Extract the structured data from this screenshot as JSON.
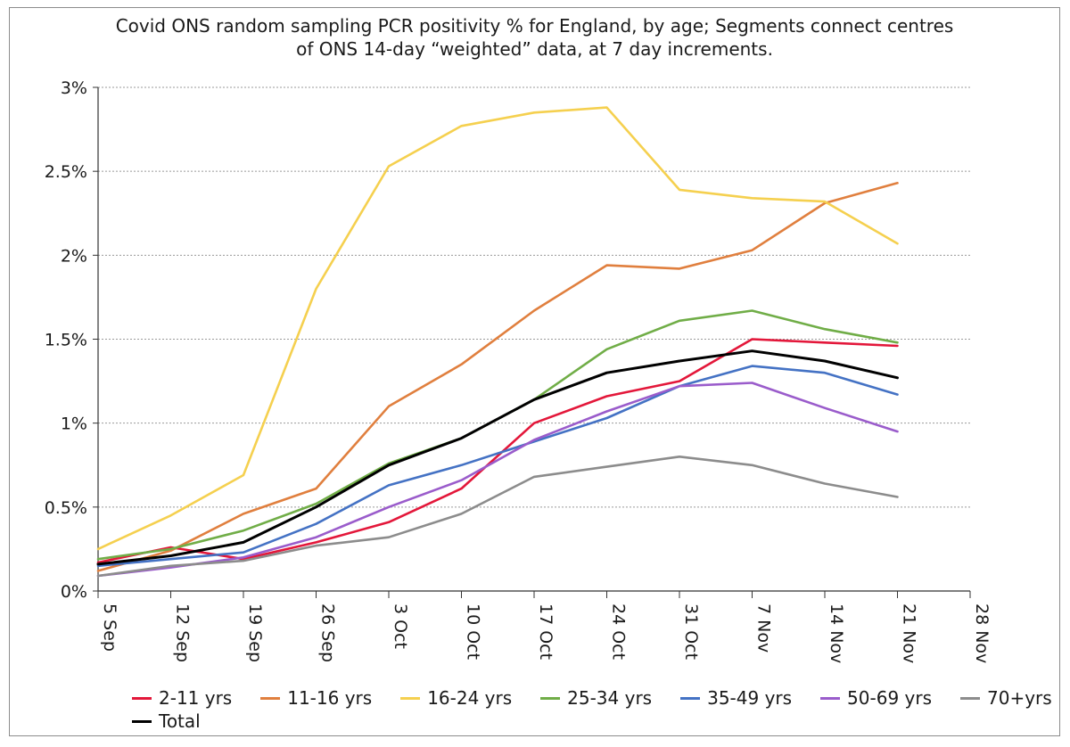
{
  "chart_data": {
    "type": "line",
    "title_line1": "Covid ONS random sampling PCR positivity % for England, by age; Segments connect centres",
    "title_line2": "of ONS 14-day “weighted” data, at 7 day increments.",
    "x_ticks": [
      "5 Sep",
      "12 Sep",
      "19 Sep",
      "26 Sep",
      "3 Oct",
      "10 Oct",
      "17 Oct",
      "24 Oct",
      "31 Oct",
      "7 Nov",
      "14 Nov",
      "21 Nov",
      "28 Nov"
    ],
    "y_ticks": [
      "0%",
      "0.5%",
      "1%",
      "1.5%",
      "2%",
      "2.5%",
      "3%"
    ],
    "ylim": [
      0,
      3
    ],
    "grid": true,
    "legend_position": "bottom",
    "series": [
      {
        "name": "2-11 yrs",
        "color": "#e3173a",
        "values": [
          0.17,
          0.26,
          0.19,
          0.29,
          0.41,
          0.61,
          1.0,
          1.16,
          1.25,
          1.5,
          1.48,
          1.46
        ]
      },
      {
        "name": "11-16 yrs",
        "color": "#e07f3e",
        "values": [
          0.12,
          0.24,
          0.46,
          0.61,
          1.1,
          1.35,
          1.67,
          1.94,
          1.92,
          2.03,
          2.31,
          2.43
        ]
      },
      {
        "name": "16-24 yrs",
        "color": "#f5d04f",
        "values": [
          0.25,
          0.45,
          0.69,
          1.8,
          2.53,
          2.77,
          2.85,
          2.88,
          2.39,
          2.34,
          2.32,
          2.07
        ]
      },
      {
        "name": "25-34 yrs",
        "color": "#70ad47",
        "values": [
          0.19,
          0.25,
          0.36,
          0.52,
          0.76,
          0.91,
          1.14,
          1.44,
          1.61,
          1.67,
          1.56,
          1.48
        ]
      },
      {
        "name": "35-49 yrs",
        "color": "#4472c4",
        "values": [
          0.15,
          0.19,
          0.23,
          0.4,
          0.63,
          0.75,
          0.89,
          1.03,
          1.22,
          1.34,
          1.3,
          1.17
        ]
      },
      {
        "name": "50-69 yrs",
        "color": "#9a5ccb",
        "values": [
          0.09,
          0.14,
          0.2,
          0.32,
          0.5,
          0.66,
          0.9,
          1.07,
          1.22,
          1.24,
          1.09,
          0.95
        ]
      },
      {
        "name": "70+yrs",
        "color": "#8c8c8c",
        "values": [
          0.09,
          0.15,
          0.18,
          0.27,
          0.32,
          0.46,
          0.68,
          0.74,
          0.8,
          0.75,
          0.64,
          0.56
        ]
      },
      {
        "name": "Total",
        "color": "#000000",
        "values": [
          0.16,
          0.21,
          0.29,
          0.5,
          0.75,
          0.91,
          1.14,
          1.3,
          1.37,
          1.43,
          1.37,
          1.27
        ]
      }
    ]
  }
}
